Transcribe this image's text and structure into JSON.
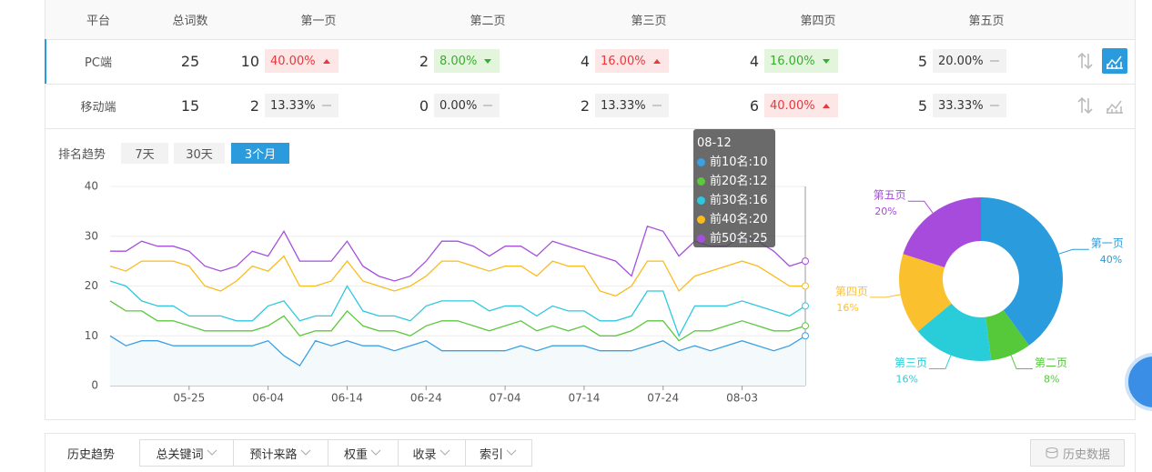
{
  "table": {
    "headers": [
      "平台",
      "总词数",
      "第一页",
      "第二页",
      "第三页",
      "第四页",
      "第五页"
    ],
    "rows": [
      {
        "platform": "PC端",
        "total": 25,
        "pages": [
          {
            "count": 10,
            "percent": "40.00%",
            "trend": "up"
          },
          {
            "count": 2,
            "percent": "8.00%",
            "trend": "down"
          },
          {
            "count": 4,
            "percent": "16.00%",
            "trend": "up"
          },
          {
            "count": 4,
            "percent": "16.00%",
            "trend": "down"
          },
          {
            "count": 5,
            "percent": "20.00%",
            "trend": "flat"
          }
        ]
      },
      {
        "platform": "移动端",
        "total": 15,
        "pages": [
          {
            "count": 2,
            "percent": "13.33%",
            "trend": "flat"
          },
          {
            "count": 0,
            "percent": "0.00%",
            "trend": "flat"
          },
          {
            "count": 2,
            "percent": "13.33%",
            "trend": "flat"
          },
          {
            "count": 6,
            "percent": "40.00%",
            "trend": "up"
          },
          {
            "count": 5,
            "percent": "33.33%",
            "trend": "flat"
          }
        ]
      }
    ]
  },
  "trend": {
    "label": "排名趋势",
    "tabs": [
      "7天",
      "30天",
      "3个月"
    ],
    "active": 2
  },
  "chart_data": [
    {
      "type": "line",
      "tooltip_x": "08-12",
      "categories": [
        null,
        null,
        null,
        null,
        null,
        "05-25",
        null,
        null,
        null,
        null,
        "06-04",
        null,
        null,
        null,
        null,
        "06-14",
        null,
        null,
        null,
        null,
        "06-24",
        null,
        null,
        null,
        null,
        "07-04",
        null,
        null,
        null,
        null,
        "07-14",
        null,
        null,
        null,
        null,
        "07-24",
        null,
        null,
        null,
        null,
        "08-03",
        null,
        null,
        null,
        null
      ],
      "ylim": [
        0,
        40
      ],
      "yticks": [
        0,
        10,
        20,
        30,
        40
      ],
      "grid": true,
      "series": [
        {
          "name": "前10名",
          "color": "#3ba1e3",
          "values": [
            10,
            8,
            9,
            9,
            8,
            8,
            8,
            8,
            8,
            8,
            9,
            6,
            4,
            9,
            8,
            9,
            8,
            8,
            7,
            8,
            9,
            7,
            7,
            7,
            7,
            7,
            8,
            7,
            8,
            8,
            8,
            7,
            7,
            7,
            8,
            9,
            7,
            8,
            7,
            8,
            9,
            8,
            7,
            8,
            10
          ]
        },
        {
          "name": "前20名",
          "color": "#5cc83c",
          "values": [
            17,
            15,
            15,
            13,
            13,
            12,
            11,
            11,
            11,
            11,
            12,
            14,
            10,
            11,
            11,
            15,
            12,
            11,
            11,
            10,
            12,
            13,
            13,
            12,
            11,
            12,
            13,
            11,
            12,
            11,
            12,
            10,
            10,
            11,
            13,
            13,
            9,
            11,
            11,
            12,
            13,
            12,
            11,
            11,
            12
          ]
        },
        {
          "name": "前30名",
          "color": "#2ec8de",
          "values": [
            21,
            20,
            17,
            16,
            16,
            14,
            14,
            14,
            13,
            13,
            16,
            17,
            13,
            14,
            14,
            20,
            15,
            14,
            14,
            13,
            16,
            17,
            17,
            17,
            15,
            16,
            16,
            14,
            16,
            15,
            15,
            13,
            13,
            14,
            19,
            19,
            10,
            16,
            16,
            16,
            17,
            16,
            15,
            14,
            16
          ]
        },
        {
          "name": "前40名",
          "color": "#f9bc1c",
          "values": [
            24,
            23,
            25,
            25,
            25,
            24,
            20,
            19,
            21,
            24,
            23,
            26,
            20,
            20,
            21,
            25,
            21,
            20,
            19,
            20,
            22,
            25,
            25,
            24,
            23,
            24,
            24,
            22,
            25,
            24,
            24,
            19,
            18,
            20,
            25,
            25,
            19,
            22,
            23,
            24,
            25,
            24,
            22,
            20,
            20
          ]
        },
        {
          "name": "前50名",
          "color": "#a450dc",
          "values": [
            27,
            27,
            29,
            28,
            28,
            27,
            24,
            23,
            24,
            27,
            26,
            31,
            25,
            25,
            25,
            29,
            24,
            22,
            21,
            22,
            25,
            29,
            29,
            28,
            26,
            28,
            28,
            26,
            29,
            28,
            27,
            26,
            25,
            22,
            32,
            31,
            26,
            29,
            28,
            28,
            30,
            29,
            27,
            24,
            25
          ]
        }
      ]
    },
    {
      "type": "pie",
      "categories": [
        "第一页",
        "第二页",
        "第三页",
        "第四页",
        "第五页"
      ],
      "values": [
        40,
        8,
        16,
        16,
        20
      ],
      "value_labels": [
        "40%",
        "8%",
        "16%",
        "16%",
        "20%"
      ],
      "colors": [
        "#2a9bdc",
        "#55c93a",
        "#29ccd9",
        "#fbc02d",
        "#a64bdc"
      ]
    }
  ],
  "history": {
    "label": "历史趋势",
    "filters": [
      "总关键词",
      "预计来路",
      "权重",
      "收录",
      "索引"
    ],
    "button": "历史数据"
  }
}
